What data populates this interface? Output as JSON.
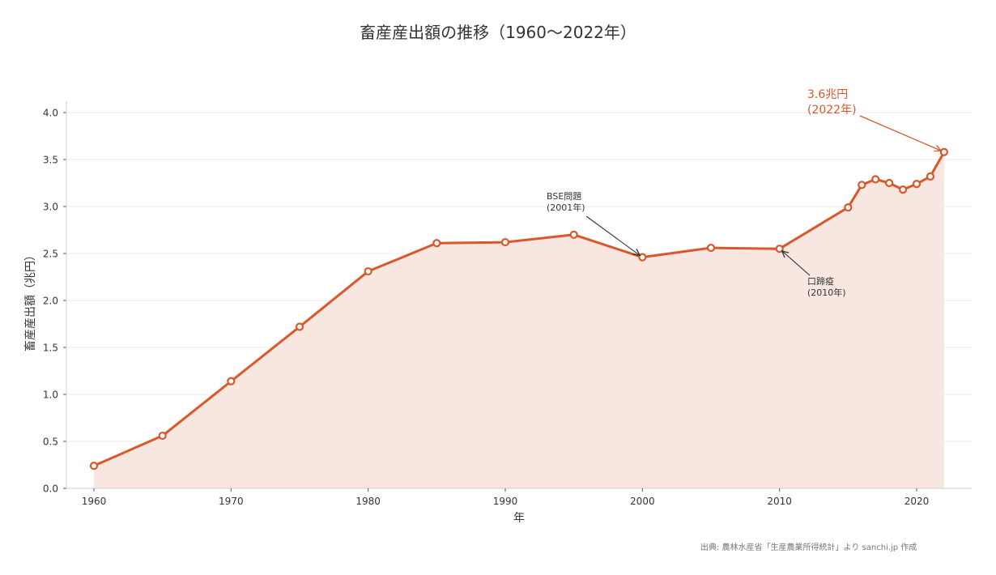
{
  "chart_data": {
    "type": "line",
    "title": "畜産産出額の推移（1960〜2022年）",
    "xlabel": "年",
    "ylabel": "畜産産出額（兆円）",
    "ylim": [
      0,
      4.0
    ],
    "xlim": [
      1958,
      2024
    ],
    "yticks": [
      "0.0",
      "0.5",
      "1.0",
      "1.5",
      "2.0",
      "2.5",
      "3.0",
      "3.5",
      "4.0"
    ],
    "xticks": [
      "1960",
      "1970",
      "1980",
      "1990",
      "2000",
      "2010",
      "2020"
    ],
    "grid": "horizontal",
    "area_fill": true,
    "series": [
      {
        "name": "畜産産出額",
        "color": "#d9572b",
        "x": [
          1960,
          1965,
          1970,
          1975,
          1980,
          1985,
          1990,
          1995,
          2000,
          2005,
          2010,
          2015,
          2016,
          2017,
          2018,
          2019,
          2020,
          2021,
          2022
        ],
        "values": [
          0.24,
          0.56,
          1.14,
          1.72,
          2.31,
          2.61,
          2.62,
          2.7,
          2.46,
          2.56,
          2.55,
          2.99,
          3.23,
          3.29,
          3.25,
          3.18,
          3.24,
          3.32,
          3.58
        ]
      }
    ],
    "annotations": [
      {
        "text_line1": "BSE問題",
        "text_line2": "(2001年)",
        "target_x": 2000,
        "target_y": 2.46,
        "color": "#333333"
      },
      {
        "text_line1": "口蹄疫",
        "text_line2": "(2010年)",
        "target_x": 2010,
        "target_y": 2.55,
        "color": "#333333"
      },
      {
        "text_line1": "3.6兆円",
        "text_line2": "(2022年)",
        "target_x": 2022,
        "target_y": 3.58,
        "color": "#d9572b"
      }
    ]
  },
  "source_note": "出典: 農林水産省「生産農業所得統計」より sanchi.jp 作成",
  "colors": {
    "line": "#d9572b",
    "fill": "#f8e6e0",
    "grid": "#ebebeb",
    "axis": "#cccccc",
    "text": "#333333"
  }
}
